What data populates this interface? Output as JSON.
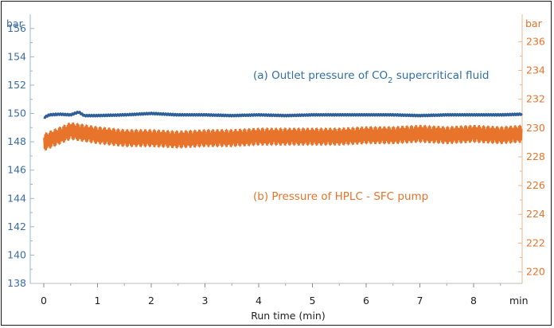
{
  "chart_data": {
    "type": "line",
    "xlabel": "Run time (min)",
    "x_unit": "min",
    "x_ticks": [
      "0",
      "1",
      "2",
      "3",
      "4",
      "5",
      "6",
      "7",
      "8"
    ],
    "xlim": [
      0,
      9
    ],
    "left_axis": {
      "unit": "bar",
      "ylim": [
        138,
        157
      ],
      "ticks": [
        "138",
        "140",
        "142",
        "144",
        "146",
        "148",
        "150",
        "152",
        "154",
        "156"
      ],
      "color": "#3a6ea5"
    },
    "right_axis": {
      "unit": "bar",
      "ylim": [
        219.2,
        237.9
      ],
      "ticks": [
        "220",
        "222",
        "224",
        "226",
        "228",
        "230",
        "232",
        "234",
        "236"
      ],
      "color": "#e8732a"
    },
    "grid": false,
    "series": [
      {
        "name": "(a) Outlet pressure of CO2 supercritical fluid",
        "axis": "left",
        "color": "#2f5f99",
        "x": [
          0,
          0.1,
          0.3,
          0.5,
          0.65,
          0.75,
          1.0,
          1.5,
          2.0,
          2.5,
          3.0,
          3.5,
          4.0,
          4.5,
          5.0,
          5.5,
          6.0,
          6.5,
          7.0,
          7.5,
          8.0,
          8.5,
          8.9
        ],
        "values": [
          149.7,
          149.9,
          149.95,
          149.9,
          150.1,
          149.85,
          149.85,
          149.9,
          150.0,
          149.9,
          149.9,
          149.85,
          149.9,
          149.85,
          149.9,
          149.9,
          149.9,
          149.9,
          149.85,
          149.9,
          149.9,
          149.9,
          149.95
        ]
      },
      {
        "name": "(b) Pressure of HPLC - SFC pump",
        "axis": "right",
        "color": "#e8732a",
        "x": [
          0,
          0.5,
          1,
          1.5,
          2,
          2.5,
          3,
          3.5,
          4,
          4.5,
          5,
          5.5,
          6,
          6.5,
          7,
          7.5,
          8,
          8.5,
          8.9
        ],
        "values": [
          229.0,
          229.8,
          229.5,
          229.3,
          229.3,
          229.2,
          229.3,
          229.3,
          229.4,
          229.4,
          229.4,
          229.4,
          229.5,
          229.5,
          229.6,
          229.5,
          229.6,
          229.5,
          229.6
        ],
        "fluctuation": 0.6
      }
    ],
    "annotations": {
      "a_prefix": "(a) Outlet pressure of CO",
      "a_sub": "2",
      "a_suffix": " supercritical fluid",
      "b": "(b) Pressure of HPLC - SFC pump"
    }
  }
}
